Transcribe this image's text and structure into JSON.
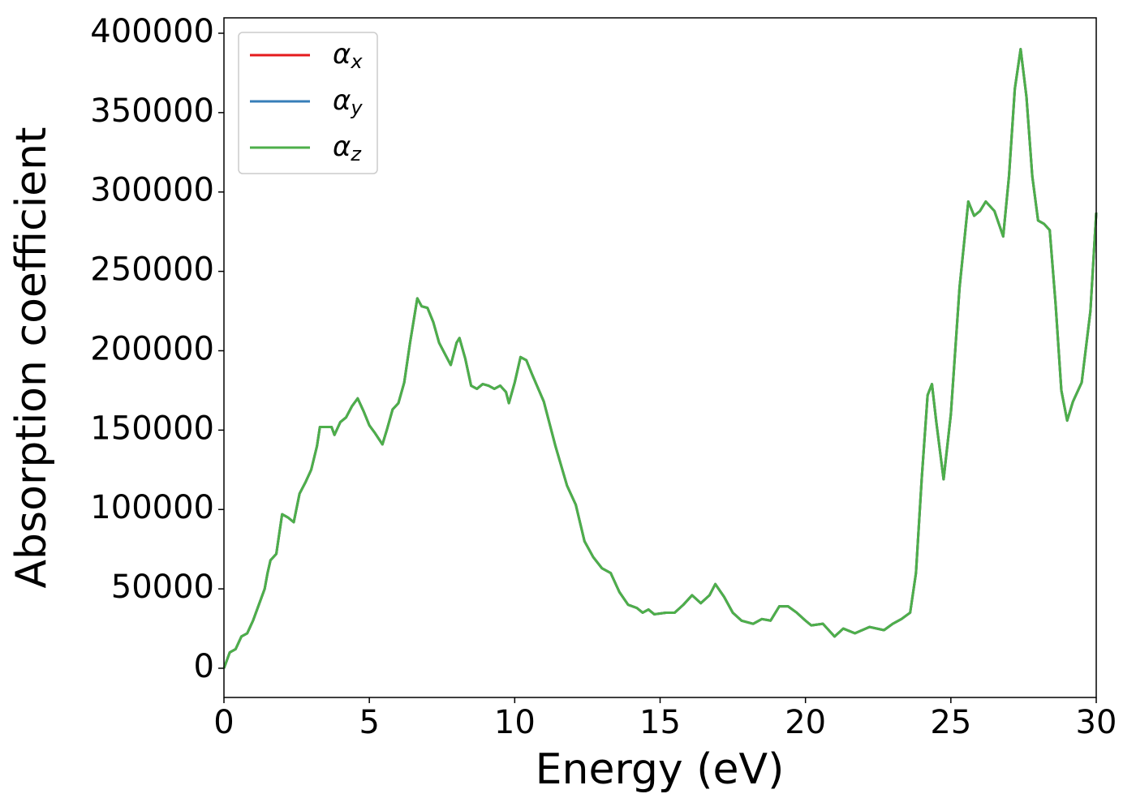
{
  "chart_data": {
    "type": "line",
    "xlabel": "Energy (eV)",
    "ylabel": "Absorption coefficient",
    "x": [
      0,
      0.2,
      0.4,
      0.6,
      0.8,
      1.0,
      1.2,
      1.4,
      1.5,
      1.6,
      1.8,
      2.0,
      2.2,
      2.4,
      2.6,
      2.8,
      3.0,
      3.2,
      3.3,
      3.5,
      3.7,
      3.8,
      4.0,
      4.2,
      4.4,
      4.6,
      4.8,
      5.0,
      5.2,
      5.45,
      5.6,
      5.8,
      6.0,
      6.2,
      6.4,
      6.65,
      6.8,
      7.0,
      7.2,
      7.4,
      7.6,
      7.8,
      8.0,
      8.1,
      8.3,
      8.5,
      8.7,
      8.9,
      9.1,
      9.3,
      9.5,
      9.7,
      9.8,
      10.0,
      10.2,
      10.4,
      10.6,
      11.0,
      11.4,
      11.8,
      12.1,
      12.4,
      12.7,
      13.0,
      13.3,
      13.6,
      13.9,
      14.2,
      14.4,
      14.6,
      14.8,
      15.2,
      15.5,
      15.8,
      16.1,
      16.4,
      16.7,
      16.9,
      17.2,
      17.5,
      17.8,
      18.2,
      18.5,
      18.8,
      19.1,
      19.4,
      19.7,
      20.0,
      20.2,
      20.6,
      21.0,
      21.3,
      21.7,
      22.2,
      22.7,
      23.0,
      23.3,
      23.6,
      23.8,
      24.0,
      24.2,
      24.35,
      24.5,
      24.75,
      25.0,
      25.3,
      25.6,
      25.8,
      26.0,
      26.2,
      26.5,
      26.8,
      27.0,
      27.2,
      27.4,
      27.6,
      27.8,
      28.0,
      28.2,
      28.4,
      28.6,
      28.8,
      29.0,
      29.2,
      29.5,
      29.8,
      30.0
    ],
    "series": [
      {
        "name": "αx",
        "color": "#e41a1c",
        "values": [
          0,
          10000,
          12000,
          20000,
          22000,
          30000,
          40000,
          50000,
          60000,
          68000,
          72000,
          97000,
          95000,
          92000,
          110000,
          117000,
          125000,
          140000,
          152000,
          152000,
          152000,
          147000,
          155000,
          158000,
          165000,
          170000,
          162000,
          153000,
          148000,
          141000,
          150000,
          163000,
          167000,
          180000,
          205000,
          233000,
          228000,
          227000,
          218000,
          205000,
          198000,
          191000,
          205000,
          208000,
          195000,
          178000,
          176000,
          179000,
          178000,
          176000,
          178000,
          174000,
          167000,
          180000,
          196000,
          194000,
          185000,
          168000,
          140000,
          115000,
          103000,
          80000,
          70000,
          63000,
          60000,
          48000,
          40000,
          38000,
          35000,
          37000,
          34000,
          35000,
          35000,
          40000,
          46000,
          41000,
          46000,
          53000,
          45000,
          35000,
          30000,
          28000,
          31000,
          30000,
          39000,
          39000,
          35000,
          30000,
          27000,
          28000,
          20000,
          25000,
          22000,
          26000,
          24000,
          28000,
          31000,
          35000,
          60000,
          120000,
          172000,
          179000,
          155000,
          119000,
          160000,
          240000,
          294000,
          285000,
          288000,
          294000,
          288000,
          272000,
          310000,
          365000,
          390000,
          360000,
          310000,
          282000,
          280000,
          276000,
          230000,
          175000,
          156000,
          168000,
          180000,
          225000,
          287000
        ]
      },
      {
        "name": "αy",
        "color": "#377eb8",
        "values": [
          0,
          10000,
          12000,
          20000,
          22000,
          30000,
          40000,
          50000,
          60000,
          68000,
          72000,
          97000,
          95000,
          92000,
          110000,
          117000,
          125000,
          140000,
          152000,
          152000,
          152000,
          147000,
          155000,
          158000,
          165000,
          170000,
          162000,
          153000,
          148000,
          141000,
          150000,
          163000,
          167000,
          180000,
          205000,
          233000,
          228000,
          227000,
          218000,
          205000,
          198000,
          191000,
          205000,
          208000,
          195000,
          178000,
          176000,
          179000,
          178000,
          176000,
          178000,
          174000,
          167000,
          180000,
          196000,
          194000,
          185000,
          168000,
          140000,
          115000,
          103000,
          80000,
          70000,
          63000,
          60000,
          48000,
          40000,
          38000,
          35000,
          37000,
          34000,
          35000,
          35000,
          40000,
          46000,
          41000,
          46000,
          53000,
          45000,
          35000,
          30000,
          28000,
          31000,
          30000,
          39000,
          39000,
          35000,
          30000,
          27000,
          28000,
          20000,
          25000,
          22000,
          26000,
          24000,
          28000,
          31000,
          35000,
          60000,
          120000,
          172000,
          179000,
          155000,
          119000,
          160000,
          240000,
          294000,
          285000,
          288000,
          294000,
          288000,
          272000,
          310000,
          365000,
          390000,
          360000,
          310000,
          282000,
          280000,
          276000,
          230000,
          175000,
          156000,
          168000,
          180000,
          225000,
          287000
        ]
      },
      {
        "name": "αz",
        "color": "#4daf4a",
        "values": [
          0,
          10000,
          12000,
          20000,
          22000,
          30000,
          40000,
          50000,
          60000,
          68000,
          72000,
          97000,
          95000,
          92000,
          110000,
          117000,
          125000,
          140000,
          152000,
          152000,
          152000,
          147000,
          155000,
          158000,
          165000,
          170000,
          162000,
          153000,
          148000,
          141000,
          150000,
          163000,
          167000,
          180000,
          205000,
          233000,
          228000,
          227000,
          218000,
          205000,
          198000,
          191000,
          205000,
          208000,
          195000,
          178000,
          176000,
          179000,
          178000,
          176000,
          178000,
          174000,
          167000,
          180000,
          196000,
          194000,
          185000,
          168000,
          140000,
          115000,
          103000,
          80000,
          70000,
          63000,
          60000,
          48000,
          40000,
          38000,
          35000,
          37000,
          34000,
          35000,
          35000,
          40000,
          46000,
          41000,
          46000,
          53000,
          45000,
          35000,
          30000,
          28000,
          31000,
          30000,
          39000,
          39000,
          35000,
          30000,
          27000,
          28000,
          20000,
          25000,
          22000,
          26000,
          24000,
          28000,
          31000,
          35000,
          60000,
          120000,
          172000,
          179000,
          155000,
          119000,
          160000,
          240000,
          294000,
          285000,
          288000,
          294000,
          288000,
          272000,
          310000,
          365000,
          390000,
          360000,
          310000,
          282000,
          280000,
          276000,
          230000,
          175000,
          156000,
          168000,
          180000,
          225000,
          287000
        ]
      }
    ],
    "xlim": [
      0,
      30
    ],
    "xticks": [
      0,
      5,
      10,
      15,
      20,
      25,
      30
    ],
    "ylim": [
      -18400,
      409700
    ],
    "yticks": [
      0,
      50000,
      100000,
      150000,
      200000,
      250000,
      300000,
      350000,
      400000
    ],
    "legend": "upper left",
    "grid": false
  }
}
